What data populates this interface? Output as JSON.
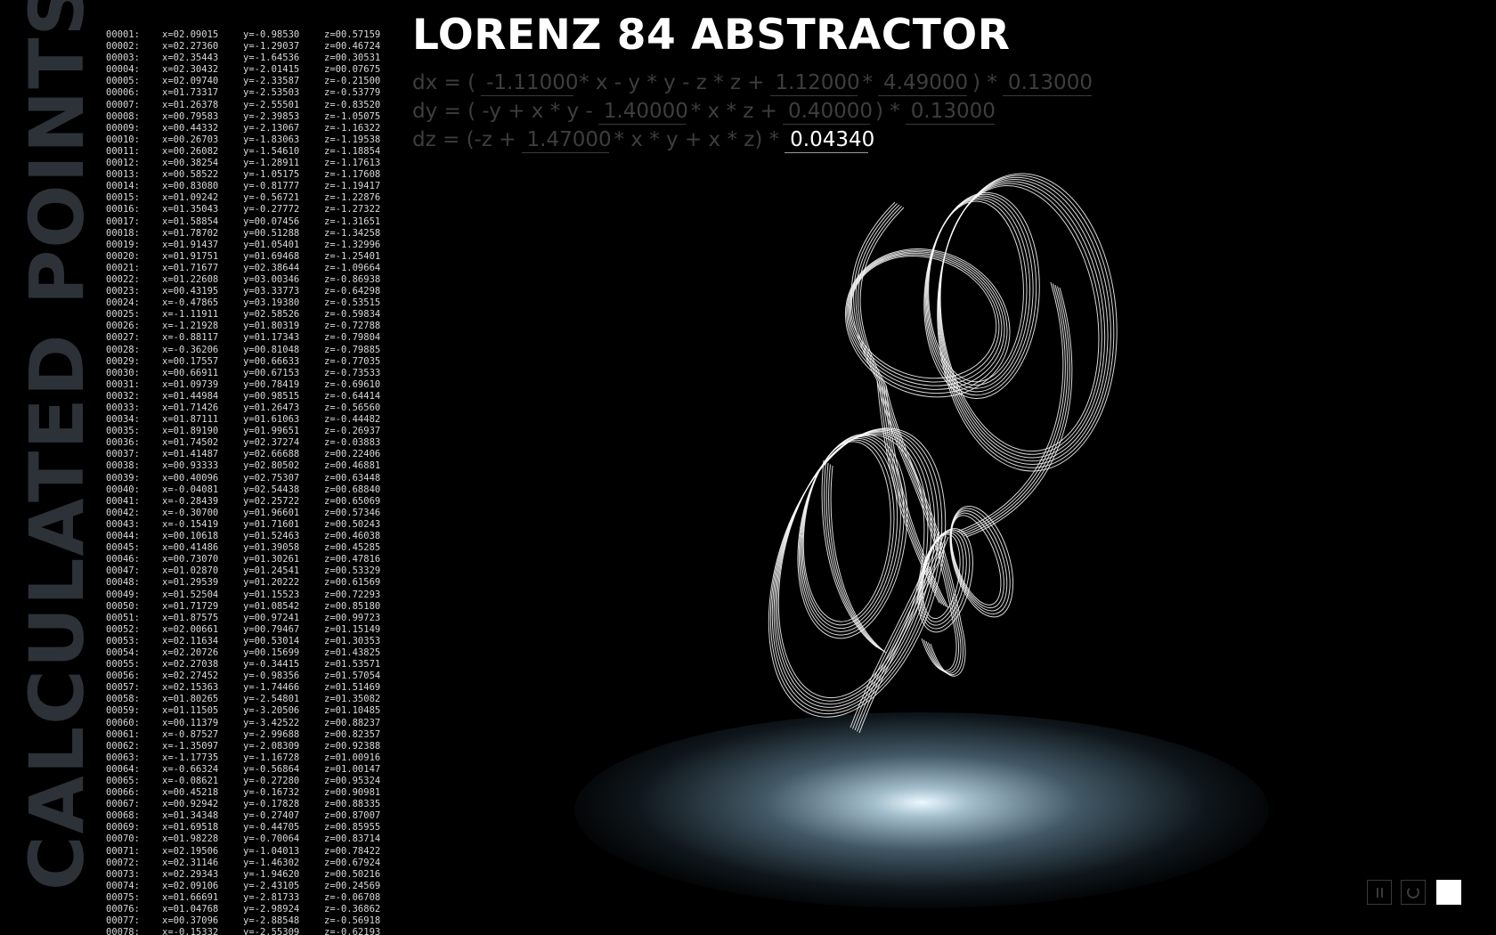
{
  "side_label": "CALCULATED POINTS",
  "title": "LORENZ 84 ABSTRACTOR",
  "equations": {
    "dx": {
      "parts": [
        "dx = (",
        "* x - y * y - z * z +",
        "*",
        ") *"
      ],
      "params": [
        "-1.11000",
        "1.12000",
        "4.49000",
        "0.13000"
      ]
    },
    "dy": {
      "parts": [
        "dy = ( -y + x * y -",
        "* x * z +",
        ") *"
      ],
      "params": [
        "1.40000",
        "0.40000",
        "0.13000"
      ]
    },
    "dz": {
      "parts": [
        "dz = (-z +",
        "* x * y + x * z) *"
      ],
      "params": [
        "1.47000",
        "0.04340"
      ]
    }
  },
  "colors": {
    "background": "#000000",
    "text": "#ffffff",
    "dim_text": "#3e3e3e",
    "side_label": "#2c3238",
    "glow": "#d9eef8"
  },
  "controls": {
    "pause_icon": "pause-icon",
    "reset_icon": "reset-icon",
    "color_swatch": "#ffffff"
  },
  "points": [
    [
      "00001:",
      "x=02.09015",
      "y=-0.98530",
      "z=00.57159"
    ],
    [
      "00002:",
      "x=02.27360",
      "y=-1.29037",
      "z=00.46724"
    ],
    [
      "00003:",
      "x=02.35443",
      "y=-1.64536",
      "z=00.30531"
    ],
    [
      "00004:",
      "x=02.30432",
      "y=-2.01415",
      "z=00.07675"
    ],
    [
      "00005:",
      "x=02.09740",
      "y=-2.33587",
      "z=-0.21500"
    ],
    [
      "00006:",
      "x=01.73317",
      "y=-2.53503",
      "z=-0.53779"
    ],
    [
      "00007:",
      "x=01.26378",
      "y=-2.55501",
      "z=-0.83520"
    ],
    [
      "00008:",
      "x=00.79583",
      "y=-2.39853",
      "z=-1.05075"
    ],
    [
      "00009:",
      "x=00.44332",
      "y=-2.13067",
      "z=-1.16322"
    ],
    [
      "00010:",
      "x=00.26703",
      "y=-1.83063",
      "z=-1.19538"
    ],
    [
      "00011:",
      "x=00.26082",
      "y=-1.54610",
      "z=-1.18854"
    ],
    [
      "00012:",
      "x=00.38254",
      "y=-1.28911",
      "z=-1.17613"
    ],
    [
      "00013:",
      "x=00.58522",
      "y=-1.05175",
      "z=-1.17608"
    ],
    [
      "00014:",
      "x=00.83080",
      "y=-0.81777",
      "z=-1.19417"
    ],
    [
      "00015:",
      "x=01.09242",
      "y=-0.56721",
      "z=-1.22876"
    ],
    [
      "00016:",
      "x=01.35043",
      "y=-0.27772",
      "z=-1.27322"
    ],
    [
      "00017:",
      "x=01.58854",
      "y=00.07456",
      "z=-1.31651"
    ],
    [
      "00018:",
      "x=01.78702",
      "y=00.51288",
      "z=-1.34258"
    ],
    [
      "00019:",
      "x=01.91437",
      "y=01.05401",
      "z=-1.32996"
    ],
    [
      "00020:",
      "x=01.91751",
      "y=01.69468",
      "z=-1.25401"
    ],
    [
      "00021:",
      "x=01.71677",
      "y=02.38644",
      "z=-1.09664"
    ],
    [
      "00022:",
      "x=01.22608",
      "y=03.00346",
      "z=-0.86938"
    ],
    [
      "00023:",
      "x=00.43195",
      "y=03.33773",
      "z=-0.64298"
    ],
    [
      "00024:",
      "x=-0.47865",
      "y=03.19380",
      "z=-0.53515"
    ],
    [
      "00025:",
      "x=-1.11911",
      "y=02.58526",
      "z=-0.59834"
    ],
    [
      "00026:",
      "x=-1.21928",
      "y=01.80319",
      "z=-0.72788"
    ],
    [
      "00027:",
      "x=-0.88117",
      "y=01.17343",
      "z=-0.79804"
    ],
    [
      "00028:",
      "x=-0.36206",
      "y=00.81048",
      "z=-0.79885"
    ],
    [
      "00029:",
      "x=00.17557",
      "y=00.66633",
      "z=-0.77035"
    ],
    [
      "00030:",
      "x=00.66911",
      "y=00.67153",
      "z=-0.73533"
    ],
    [
      "00031:",
      "x=01.09739",
      "y=00.78419",
      "z=-0.69610"
    ],
    [
      "00032:",
      "x=01.44984",
      "y=00.98515",
      "z=-0.64414"
    ],
    [
      "00033:",
      "x=01.71426",
      "y=01.26473",
      "z=-0.56560"
    ],
    [
      "00034:",
      "x=01.87111",
      "y=01.61063",
      "z=-0.44482"
    ],
    [
      "00035:",
      "x=01.89190",
      "y=01.99651",
      "z=-0.26937"
    ],
    [
      "00036:",
      "x=01.74502",
      "y=02.37274",
      "z=-0.03883"
    ],
    [
      "00037:",
      "x=01.41487",
      "y=02.66688",
      "z=00.22406"
    ],
    [
      "00038:",
      "x=00.93333",
      "y=02.80502",
      "z=00.46881"
    ],
    [
      "00039:",
      "x=00.40096",
      "y=02.75307",
      "z=00.63448"
    ],
    [
      "00040:",
      "x=-0.04081",
      "y=02.54438",
      "z=00.68840"
    ],
    [
      "00041:",
      "x=-0.28439",
      "y=02.25722",
      "z=00.65069"
    ],
    [
      "00042:",
      "x=-0.30700",
      "y=01.96601",
      "z=00.57346"
    ],
    [
      "00043:",
      "x=-0.15419",
      "y=01.71601",
      "z=00.50243"
    ],
    [
      "00044:",
      "x=00.10618",
      "y=01.52463",
      "z=00.46038"
    ],
    [
      "00045:",
      "x=00.41486",
      "y=01.39058",
      "z=00.45285"
    ],
    [
      "00046:",
      "x=00.73070",
      "y=01.30261",
      "z=00.47816"
    ],
    [
      "00047:",
      "x=01.02870",
      "y=01.24541",
      "z=00.53329"
    ],
    [
      "00048:",
      "x=01.29539",
      "y=01.20222",
      "z=00.61569"
    ],
    [
      "00049:",
      "x=01.52504",
      "y=01.15523",
      "z=00.72293"
    ],
    [
      "00050:",
      "x=01.71729",
      "y=01.08542",
      "z=00.85180"
    ],
    [
      "00051:",
      "x=01.87575",
      "y=00.97241",
      "z=00.99723"
    ],
    [
      "00052:",
      "x=02.00661",
      "y=00.79467",
      "z=01.15149"
    ],
    [
      "00053:",
      "x=02.11634",
      "y=00.53014",
      "z=01.30353"
    ],
    [
      "00054:",
      "x=02.20726",
      "y=00.15699",
      "z=01.43825"
    ],
    [
      "00055:",
      "x=02.27038",
      "y=-0.34415",
      "z=01.53571"
    ],
    [
      "00056:",
      "x=02.27452",
      "y=-0.98356",
      "z=01.57054"
    ],
    [
      "00057:",
      "x=02.15363",
      "y=-1.74466",
      "z=01.51469"
    ],
    [
      "00058:",
      "x=01.80265",
      "y=-2.54801",
      "z=01.35082"
    ],
    [
      "00059:",
      "x=01.11505",
      "y=-3.20506",
      "z=01.10485"
    ],
    [
      "00060:",
      "x=00.11379",
      "y=-3.42522",
      "z=00.88237"
    ],
    [
      "00061:",
      "x=-0.87527",
      "y=-2.99688",
      "z=00.82357"
    ],
    [
      "00062:",
      "x=-1.35097",
      "y=-2.08309",
      "z=00.92388"
    ],
    [
      "00063:",
      "x=-1.17735",
      "y=-1.16728",
      "z=01.00916"
    ],
    [
      "00064:",
      "x=-0.66324",
      "y=-0.56864",
      "z=01.00147"
    ],
    [
      "00065:",
      "x=-0.08621",
      "y=-0.27280",
      "z=00.95324"
    ],
    [
      "00066:",
      "x=00.45218",
      "y=-0.16732",
      "z=00.90981"
    ],
    [
      "00067:",
      "x=00.92942",
      "y=-0.17828",
      "z=00.88335"
    ],
    [
      "00068:",
      "x=01.34348",
      "y=-0.27407",
      "z=00.87007"
    ],
    [
      "00069:",
      "x=01.69518",
      "y=-0.44705",
      "z=00.85955"
    ],
    [
      "00070:",
      "x=01.98228",
      "y=-0.70064",
      "z=00.83714"
    ],
    [
      "00071:",
      "x=02.19506",
      "y=-1.04013",
      "z=00.78422"
    ],
    [
      "00072:",
      "x=02.31146",
      "y=-1.46302",
      "z=00.67924"
    ],
    [
      "00073:",
      "x=02.29343",
      "y=-1.94620",
      "z=00.50216"
    ],
    [
      "00074:",
      "x=02.09106",
      "y=-2.43105",
      "z=00.24569"
    ],
    [
      "00075:",
      "x=01.66691",
      "y=-2.81733",
      "z=-0.06708"
    ],
    [
      "00076:",
      "x=01.04768",
      "y=-2.98924",
      "z=-0.36862"
    ],
    [
      "00077:",
      "x=00.37096",
      "y=-2.88548",
      "z=-0.56918"
    ],
    [
      "00078:",
      "x=-0.15332",
      "y=-2.55309",
      "z=-0.62193"
    ]
  ]
}
